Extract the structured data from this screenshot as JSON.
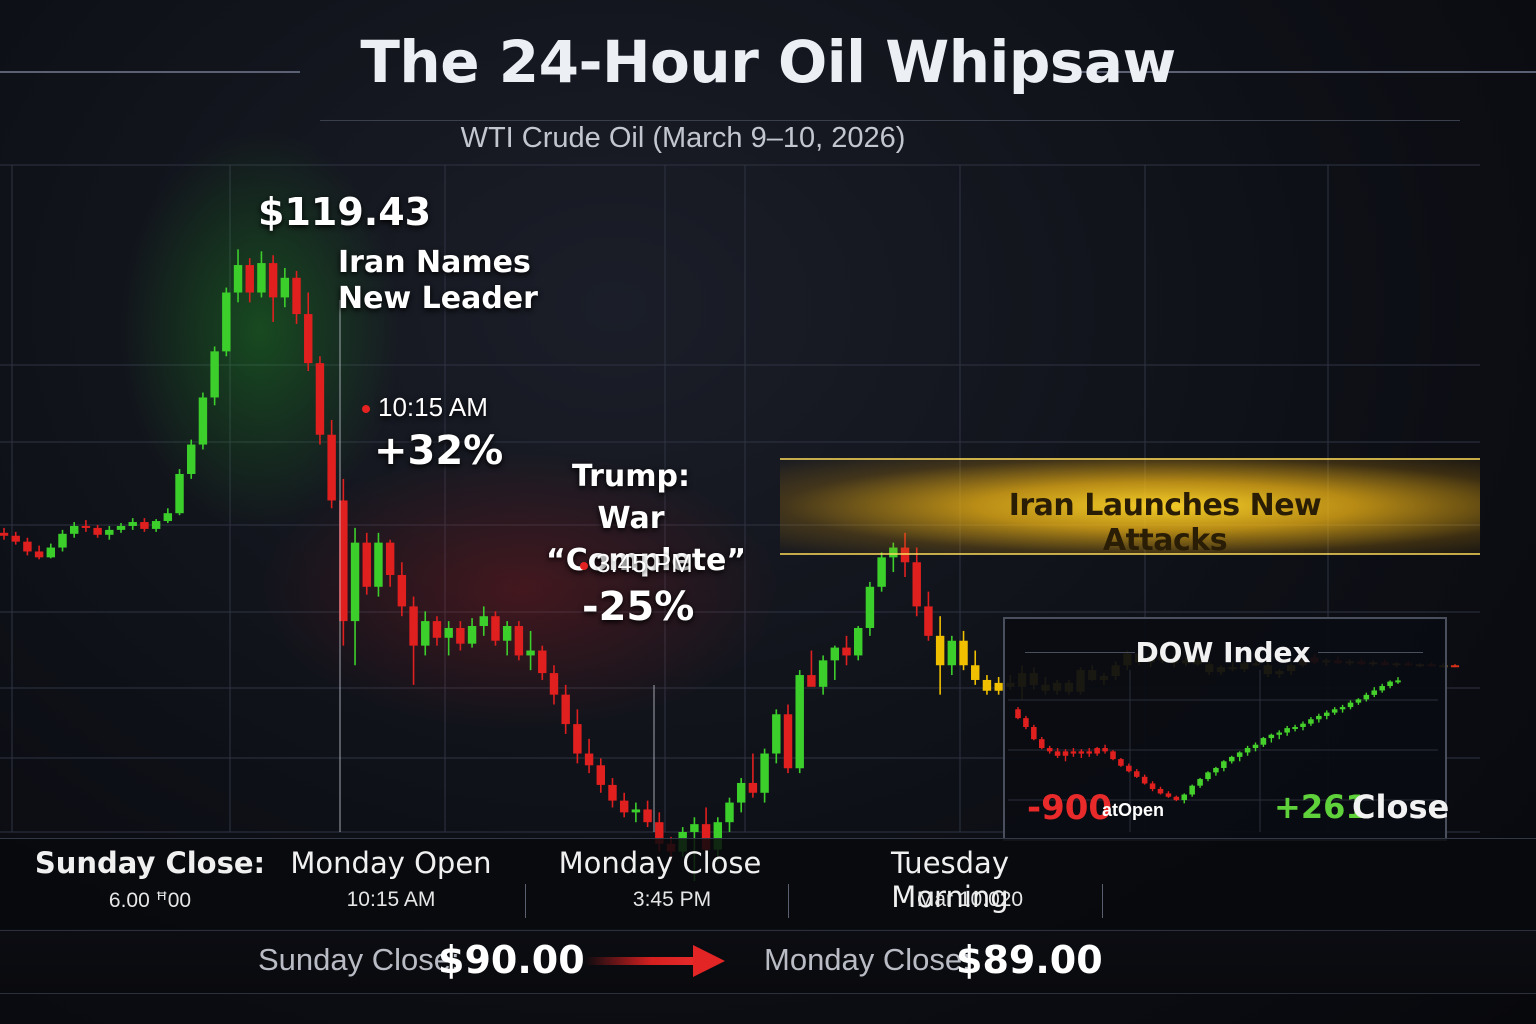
{
  "header": {
    "title": "The 24-Hour Oil Whipsaw",
    "subtitle": "WTI Crude Oil (March 9–10, 2026)"
  },
  "annotations": {
    "peak_price": "$119.43",
    "iran_leader_line1": "Iran Names",
    "iran_leader_line2": "New Leader",
    "time1": "10:15 AM",
    "pct1": "+32%",
    "trump_line1": "Trump: War",
    "trump_line2": "“Complete”",
    "time2": "3:45 PM",
    "pct2": "-25%",
    "band_label": "Iran Launches New Attacks"
  },
  "dow": {
    "title": "DOW Index",
    "open_value": "-900",
    "open_note": "atOpen",
    "close_value": "+261",
    "close_note": "Close"
  },
  "timeline": [
    {
      "label": "Sunday Close:",
      "value": "6.00 ꟸ00"
    },
    {
      "label": "Monday Open",
      "value": "10:15 AM"
    },
    {
      "label": "Monday Close",
      "value": "3:45 PM"
    },
    {
      "label": "Tuesday Morning",
      "value": "Mar 10.020"
    }
  ],
  "summary": {
    "from_label": "Sunday Close:",
    "from_value": "$90.00",
    "to_label": "Monday Close:",
    "to_value": "$89.00"
  },
  "colors": {
    "up": "#3ccf2c",
    "down": "#e01f1f",
    "amber": "#f0c000",
    "band": "#f2c81c"
  },
  "chart_data": [
    {
      "type": "candlestick",
      "title": "The 24-Hour Oil Whipsaw",
      "subtitle": "WTI Crude Oil (March 9–10, 2026)",
      "grid": true,
      "ylim": [
        60,
        128
      ],
      "candles": [
        [
          90.5,
          91.0,
          89.8,
          90.2
        ],
        [
          90.2,
          90.6,
          89.3,
          89.6
        ],
        [
          89.6,
          90.0,
          88.2,
          88.6
        ],
        [
          88.6,
          89.2,
          87.8,
          88.0
        ],
        [
          88.0,
          89.4,
          87.9,
          89.0
        ],
        [
          89.0,
          90.8,
          88.6,
          90.4
        ],
        [
          90.4,
          91.6,
          90.0,
          91.2
        ],
        [
          91.2,
          91.8,
          90.6,
          91.0
        ],
        [
          91.0,
          91.3,
          90.0,
          90.3
        ],
        [
          90.3,
          91.2,
          89.8,
          90.8
        ],
        [
          90.8,
          91.5,
          90.5,
          91.2
        ],
        [
          91.2,
          92.0,
          90.8,
          91.6
        ],
        [
          91.6,
          92.0,
          90.6,
          90.9
        ],
        [
          90.9,
          91.9,
          90.6,
          91.7
        ],
        [
          91.7,
          93.0,
          91.5,
          92.5
        ],
        [
          92.5,
          97.0,
          92.3,
          96.5
        ],
        [
          96.5,
          100.0,
          96.0,
          99.5
        ],
        [
          99.5,
          104.8,
          99.0,
          104.3
        ],
        [
          104.3,
          109.5,
          103.5,
          109.0
        ],
        [
          109.0,
          115.5,
          108.5,
          115.0
        ],
        [
          115.0,
          119.4,
          114.0,
          117.8
        ],
        [
          117.8,
          118.5,
          114.0,
          115.0
        ],
        [
          115.0,
          119.2,
          114.5,
          118.0
        ],
        [
          118.0,
          118.8,
          112.0,
          114.5
        ],
        [
          114.5,
          117.5,
          113.5,
          116.5
        ],
        [
          116.5,
          117.2,
          111.8,
          112.8
        ],
        [
          112.8,
          115.0,
          107.0,
          107.8
        ],
        [
          107.8,
          108.5,
          99.5,
          100.5
        ],
        [
          100.5,
          102.0,
          93.0,
          93.8
        ],
        [
          93.8,
          96.0,
          79.0,
          81.5
        ],
        [
          81.5,
          91.0,
          77.0,
          89.5
        ],
        [
          89.5,
          90.5,
          84.2,
          85.0
        ],
        [
          85.0,
          90.5,
          84.0,
          89.5
        ],
        [
          89.5,
          89.8,
          85.0,
          86.2
        ],
        [
          86.2,
          87.5,
          82.0,
          83.0
        ],
        [
          83.0,
          84.0,
          75.0,
          79.0
        ],
        [
          79.0,
          82.5,
          78.0,
          81.5
        ],
        [
          81.5,
          82.0,
          79.0,
          79.8
        ],
        [
          79.8,
          81.5,
          78.0,
          80.8
        ],
        [
          80.8,
          81.5,
          78.5,
          79.2
        ],
        [
          79.2,
          81.8,
          78.8,
          81.0
        ],
        [
          81.0,
          83.0,
          80.0,
          82.0
        ],
        [
          82.0,
          82.5,
          79.0,
          79.5
        ],
        [
          79.5,
          81.5,
          78.0,
          81.0
        ],
        [
          81.0,
          81.5,
          77.5,
          78.0
        ],
        [
          78.0,
          80.5,
          76.5,
          78.5
        ],
        [
          78.5,
          79.0,
          75.5,
          76.2
        ],
        [
          76.2,
          77.0,
          73.0,
          74.0
        ],
        [
          74.0,
          75.0,
          70.0,
          71.0
        ],
        [
          71.0,
          72.5,
          67.0,
          68.0
        ],
        [
          68.0,
          69.5,
          66.0,
          66.8
        ],
        [
          66.8,
          67.5,
          64.0,
          64.8
        ],
        [
          64.8,
          65.5,
          62.5,
          63.2
        ],
        [
          63.2,
          64.0,
          61.5,
          62.0
        ],
        [
          62.0,
          63.0,
          61.0,
          62.3
        ],
        [
          62.3,
          63.2,
          60.5,
          61.0
        ],
        [
          61.0,
          62.0,
          58.0,
          58.8
        ],
        [
          58.8,
          59.5,
          57.0,
          58.0
        ],
        [
          58.0,
          60.5,
          57.5,
          60.0
        ],
        [
          60.0,
          61.5,
          55.0,
          60.8
        ],
        [
          60.8,
          62.5,
          58.0,
          58.2
        ],
        [
          58.2,
          61.5,
          57.0,
          61.0
        ],
        [
          61.0,
          63.5,
          60.0,
          63.0
        ],
        [
          63.0,
          65.5,
          62.0,
          65.0
        ],
        [
          65.0,
          68.0,
          63.5,
          64.0
        ],
        [
          64.0,
          68.5,
          63.0,
          68.0
        ],
        [
          68.0,
          72.5,
          67.0,
          72.0
        ],
        [
          72.0,
          73.0,
          66.0,
          66.5
        ],
        [
          66.5,
          76.5,
          66.0,
          76.0
        ],
        [
          76.0,
          78.5,
          75.0,
          74.8
        ],
        [
          74.8,
          78.0,
          74.0,
          77.5
        ],
        [
          77.5,
          79.0,
          75.5,
          78.8
        ],
        [
          78.8,
          80.0,
          77.0,
          78.0
        ],
        [
          78.0,
          81.0,
          77.5,
          80.8
        ],
        [
          80.8,
          85.5,
          80.0,
          85.0
        ],
        [
          85.0,
          88.5,
          84.5,
          88.0
        ],
        [
          88.0,
          89.5,
          86.5,
          89.0
        ],
        [
          89.0,
          90.5,
          86.0,
          87.5
        ],
        [
          87.5,
          89.0,
          82.0,
          83.0
        ],
        [
          83.0,
          84.5,
          79.5,
          80.0
        ],
        [
          80.0,
          82.0,
          74.0,
          77.0
        ],
        [
          77.0,
          80.0,
          76.0,
          79.5
        ],
        [
          79.5,
          80.5,
          76.5,
          77.0
        ],
        [
          77.0,
          78.5,
          75.0,
          75.5
        ],
        [
          75.5,
          76.0,
          74.0,
          74.4
        ],
        [
          74.4,
          75.8,
          74.0,
          75.2
        ],
        [
          75.2,
          76.0,
          74.5,
          74.8
        ],
        [
          74.8,
          77.0,
          73.5,
          76.2
        ],
        [
          76.2,
          76.8,
          74.5,
          75.0
        ],
        [
          75.0,
          75.8,
          74.0,
          74.4
        ],
        [
          74.4,
          75.5,
          74.0,
          75.2
        ],
        [
          75.2,
          75.5,
          74.0,
          74.3
        ],
        [
          74.3,
          76.8,
          74.0,
          76.5
        ],
        [
          76.5,
          77.0,
          75.4,
          75.5
        ],
        [
          75.5,
          76.2,
          75.0,
          75.9
        ],
        [
          75.9,
          77.4,
          75.5,
          77.0
        ],
        [
          77.0,
          78.5,
          76.5,
          78.2
        ],
        [
          78.2,
          79.0,
          77.0,
          77.3
        ],
        [
          77.3,
          78.3,
          76.8,
          77.9
        ],
        [
          77.9,
          78.4,
          77.2,
          77.5
        ],
        [
          77.5,
          78.0,
          76.8,
          77.2
        ],
        [
          77.2,
          77.8,
          76.9,
          77.5
        ],
        [
          77.5,
          78.0,
          76.9,
          77.1
        ],
        [
          77.1,
          77.4,
          76.0,
          76.3
        ],
        [
          76.3,
          77.0,
          76.0,
          76.8
        ],
        [
          76.8,
          77.3,
          76.4,
          76.6
        ],
        [
          76.6,
          77.4,
          76.3,
          77.2
        ],
        [
          77.2,
          77.8,
          76.9,
          77.0
        ],
        [
          77.0,
          77.5,
          75.8,
          76.1
        ],
        [
          76.1,
          76.6,
          75.7,
          76.4
        ],
        [
          76.4,
          77.2,
          76.0,
          77.0
        ],
        [
          77.0,
          78.0,
          76.8,
          77.8
        ],
        [
          77.8,
          78.2,
          77.1,
          77.3
        ],
        [
          77.3,
          77.7,
          76.9,
          77.5
        ],
        [
          77.5,
          77.9,
          77.1,
          77.2
        ],
        [
          77.2,
          77.6,
          77.0,
          77.4
        ],
        [
          77.4,
          77.7,
          77.0,
          77.1
        ],
        [
          77.1,
          77.5,
          76.9,
          77.3
        ],
        [
          77.3,
          77.6,
          77.0,
          77.0
        ],
        [
          77.0,
          77.3,
          76.8,
          77.2
        ],
        [
          77.2,
          77.4,
          76.9,
          77.0
        ],
        [
          77.0,
          77.2,
          76.8,
          77.1
        ],
        [
          77.1,
          77.3,
          76.9,
          76.9
        ],
        [
          76.9,
          77.2,
          76.8,
          77.0
        ],
        [
          77.0,
          77.1,
          76.8,
          76.9
        ]
      ]
    },
    {
      "type": "candlestick",
      "title": "DOW Index",
      "ylim": [
        -1000,
        400
      ],
      "candles": [
        [
          0,
          20,
          -90,
          -80
        ],
        [
          -80,
          -60,
          -180,
          -160
        ],
        [
          -160,
          -140,
          -280,
          -270
        ],
        [
          -270,
          -250,
          -360,
          -350
        ],
        [
          -350,
          -330,
          -400,
          -380
        ],
        [
          -380,
          -350,
          -440,
          -420
        ],
        [
          -420,
          -360,
          -470,
          -380
        ],
        [
          -380,
          -350,
          -430,
          -400
        ],
        [
          -400,
          -360,
          -440,
          -380
        ],
        [
          -380,
          -350,
          -430,
          -400
        ],
        [
          -400,
          -340,
          -420,
          -350
        ],
        [
          -350,
          -320,
          -400,
          -380
        ],
        [
          -380,
          -370,
          -460,
          -450
        ],
        [
          -450,
          -440,
          -520,
          -510
        ],
        [
          -510,
          -490,
          -570,
          -560
        ],
        [
          -560,
          -540,
          -620,
          -610
        ],
        [
          -610,
          -590,
          -680,
          -670
        ],
        [
          -670,
          -650,
          -740,
          -720
        ],
        [
          -720,
          -700,
          -770,
          -760
        ],
        [
          -760,
          -740,
          -800,
          -790
        ],
        [
          -790,
          -780,
          -830,
          -820
        ],
        [
          -820,
          -760,
          -850,
          -770
        ],
        [
          -770,
          -680,
          -790,
          -690
        ],
        [
          -690,
          -620,
          -710,
          -630
        ],
        [
          -630,
          -560,
          -650,
          -570
        ],
        [
          -570,
          -520,
          -600,
          -530
        ],
        [
          -530,
          -460,
          -560,
          -470
        ],
        [
          -470,
          -420,
          -490,
          -430
        ],
        [
          -430,
          -380,
          -470,
          -390
        ],
        [
          -390,
          -330,
          -420,
          -350
        ],
        [
          -350,
          -300,
          -380,
          -320
        ],
        [
          -320,
          -250,
          -340,
          -260
        ],
        [
          -260,
          -220,
          -300,
          -230
        ],
        [
          -230,
          -190,
          -270,
          -210
        ],
        [
          -210,
          -150,
          -240,
          -170
        ],
        [
          -170,
          -140,
          -200,
          -160
        ],
        [
          -160,
          -110,
          -190,
          -130
        ],
        [
          -130,
          -70,
          -150,
          -90
        ],
        [
          -90,
          -40,
          -120,
          -60
        ],
        [
          -60,
          -10,
          -90,
          -30
        ],
        [
          -30,
          20,
          -50,
          0
        ],
        [
          0,
          40,
          -30,
          20
        ],
        [
          20,
          80,
          0,
          60
        ],
        [
          60,
          100,
          40,
          90
        ],
        [
          90,
          150,
          70,
          130
        ],
        [
          130,
          200,
          110,
          170
        ],
        [
          170,
          230,
          150,
          210
        ],
        [
          210,
          261,
          190,
          250
        ],
        [
          250,
          290,
          230,
          261
        ]
      ],
      "annotations": [
        "-900 atOpen",
        "+261 Close"
      ]
    }
  ]
}
